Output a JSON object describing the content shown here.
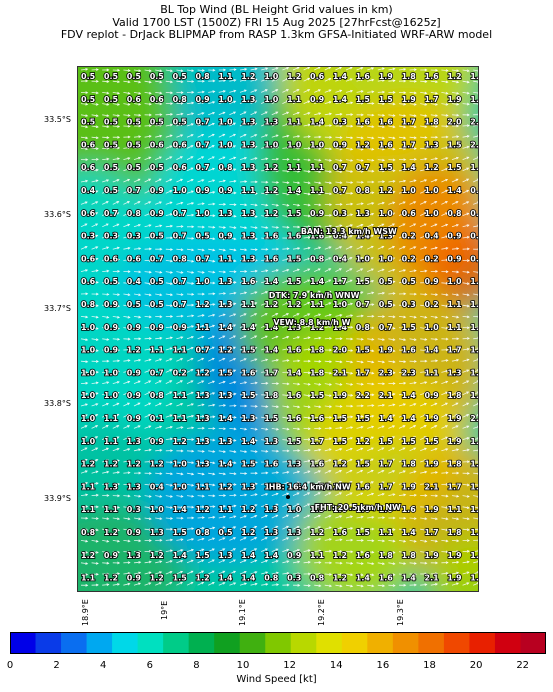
{
  "title": {
    "line1": "BL Top Wind (BL Height Grid values in km)",
    "line2": "Valid 1700 LST (1500Z) FRI 15 Aug 2025 [27hrFcst@1625z]",
    "line3": "FDV replot - DrJack BLIPMAP from RASP 1.3km GFSA-Initiated WRF-ARW model"
  },
  "lat_labels": [
    "33.5°S",
    "33.6°S",
    "33.7°S",
    "33.8°S",
    "33.9°S"
  ],
  "lon_labels": [
    "18.9°E",
    "19°E",
    "19.1°E",
    "19.2°E",
    "19.3°E"
  ],
  "grid_values": [
    [
      "0.5",
      "0.5",
      "0.5",
      "0.5",
      "0.5",
      "0.8",
      "1.1",
      "1.2",
      "1.0",
      "1.2",
      "0.6",
      "1.4",
      "1.6",
      "1.9",
      "1.8",
      "1.6",
      "1.2",
      "1.9"
    ],
    [
      "0.5",
      "0.5",
      "0.6",
      "0.6",
      "0.8",
      "0.9",
      "1.0",
      "1.3",
      "1.0",
      "1.1",
      "0.9",
      "1.4",
      "1.5",
      "1.5",
      "1.9",
      "1.7",
      "1.9",
      "1.9"
    ],
    [
      "0.5",
      "0.5",
      "0.5",
      "0.5",
      "0.5",
      "0.7",
      "1.0",
      "1.3",
      "1.3",
      "1.1",
      "1.4",
      "0.3",
      "1.6",
      "1.6",
      "1.7",
      "1.8",
      "2.0",
      "2.1"
    ],
    [
      "0.6",
      "0.5",
      "0.5",
      "0.6",
      "0.6",
      "0.7",
      "1.0",
      "1.3",
      "1.0",
      "1.0",
      "1.0",
      "0.9",
      "1.2",
      "1.6",
      "1.7",
      "1.3",
      "1.5",
      "2.0"
    ],
    [
      "0.6",
      "0.5",
      "0.5",
      "0.5",
      "0.6",
      "0.7",
      "0.8",
      "1.3",
      "1.2",
      "1.1",
      "1.1",
      "0.7",
      "0.7",
      "1.5",
      "1.4",
      "1.2",
      "1.5",
      "1.7"
    ],
    [
      "0.4",
      "0.5",
      "0.7",
      "0.9",
      "1.0",
      "0.9",
      "0.9",
      "1.1",
      "1.2",
      "1.4",
      "1.1",
      "0.7",
      "0.8",
      "1.2",
      "1.0",
      "1.0",
      "1.4",
      "0.9"
    ],
    [
      "0.6",
      "0.7",
      "0.8",
      "0.9",
      "0.7",
      "1.0",
      "1.3",
      "1.3",
      "1.2",
      "1.5",
      "0.9",
      "0.3",
      "1.3",
      "1.0",
      "0.6",
      "1.0",
      "0.8",
      "0.9"
    ],
    [
      "0.3",
      "0.3",
      "0.3",
      "0.5",
      "0.7",
      "0.5",
      "0.9",
      "1.3",
      "1.6",
      "1.6",
      "1.6",
      "0.4",
      "1.4",
      "1.3",
      "0.2",
      "0.4",
      "0.9",
      "0.8"
    ],
    [
      "0.6",
      "0.6",
      "0.6",
      "0.7",
      "0.8",
      "0.7",
      "1.1",
      "1.3",
      "1.6",
      "1.5",
      "0.8",
      "0.4",
      "1.0",
      "1.0",
      "0.2",
      "0.2",
      "0.9",
      "0.8"
    ],
    [
      "0.6",
      "0.5",
      "0.4",
      "0.5",
      "0.7",
      "1.0",
      "1.3",
      "1.6",
      "1.4",
      "1.5",
      "1.4",
      "1.7",
      "1.5",
      "0.5",
      "0.5",
      "0.9",
      "1.0",
      "1.1"
    ],
    [
      "0.8",
      "0.9",
      "0.5",
      "0.5",
      "0.7",
      "1.2",
      "1.3",
      "1.1",
      "1.2",
      "1.2",
      "1.1",
      "1.0",
      "0.7",
      "0.5",
      "0.3",
      "0.2",
      "1.1",
      "1.3"
    ],
    [
      "1.0",
      "0.9",
      "0.9",
      "0.9",
      "0.9",
      "1.1",
      "1.4",
      "1.4",
      "1.4",
      "1.3",
      "1.2",
      "1.4",
      "0.8",
      "0.7",
      "1.5",
      "1.0",
      "1.1",
      "1.3"
    ],
    [
      "1.0",
      "0.9",
      "1.2",
      "1.1",
      "1.1",
      "0.7",
      "1.2",
      "1.5",
      "1.4",
      "1.6",
      "1.8",
      "2.0",
      "1.5",
      "1.9",
      "1.6",
      "1.4",
      "1.7",
      "1.1"
    ],
    [
      "1.0",
      "1.0",
      "0.9",
      "0.7",
      "0.2",
      "1.2",
      "1.5",
      "1.6",
      "1.7",
      "1.4",
      "1.8",
      "2.1",
      "1.7",
      "2.3",
      "2.3",
      "1.1",
      "1.3",
      "1.1"
    ],
    [
      "1.0",
      "1.0",
      "0.9",
      "0.8",
      "1.1",
      "1.3",
      "1.3",
      "1.5",
      "1.8",
      "1.6",
      "1.5",
      "1.9",
      "2.2",
      "2.1",
      "1.4",
      "0.9",
      "1.8",
      "1.9"
    ],
    [
      "1.0",
      "1.1",
      "0.9",
      "0.1",
      "1.1",
      "1.3",
      "1.4",
      "1.3",
      "1.5",
      "1.6",
      "1.6",
      "1.5",
      "1.5",
      "1.4",
      "1.4",
      "1.9",
      "1.9",
      "2.2"
    ],
    [
      "1.0",
      "1.1",
      "1.3",
      "0.9",
      "1.2",
      "1.3",
      "1.3",
      "1.4",
      "1.3",
      "1.5",
      "1.7",
      "1.5",
      "1.2",
      "1.5",
      "1.5",
      "1.5",
      "1.9",
      "1.7"
    ],
    [
      "1.2",
      "1.2",
      "1.2",
      "1.2",
      "1.0",
      "1.3",
      "1.4",
      "1.5",
      "1.6",
      "1.3",
      "1.6",
      "1.2",
      "1.5",
      "1.7",
      "1.8",
      "1.9",
      "1.8",
      "1.2"
    ],
    [
      "1.1",
      "1.3",
      "1.3",
      "0.4",
      "1.0",
      "1.1",
      "1.2",
      "1.3",
      "1.6",
      "1.6",
      "1.7",
      "1.8",
      "1.6",
      "1.7",
      "1.9",
      "2.1",
      "1.7",
      "1.1"
    ],
    [
      "1.1",
      "1.1",
      "0.3",
      "1.0",
      "1.4",
      "1.2",
      "1.1",
      "1.2",
      "1.3",
      "1.0",
      "1.5",
      "1.6",
      "1.6",
      "1.0",
      "1.6",
      "1.9",
      "1.1",
      "1.6"
    ],
    [
      "0.8",
      "1.2",
      "0.9",
      "1.3",
      "1.5",
      "0.8",
      "0.5",
      "1.2",
      "1.3",
      "1.3",
      "1.2",
      "1.6",
      "1.5",
      "1.1",
      "1.4",
      "1.7",
      "1.8",
      "1.8"
    ],
    [
      "1.2",
      "0.9",
      "1.3",
      "1.2",
      "1.4",
      "1.5",
      "1.3",
      "1.4",
      "1.4",
      "0.9",
      "1.1",
      "1.2",
      "1.6",
      "1.8",
      "1.8",
      "1.9",
      "1.9",
      "1.5"
    ],
    [
      "1.1",
      "1.2",
      "0.9",
      "1.2",
      "1.5",
      "1.2",
      "1.4",
      "1.4",
      "0.8",
      "0.3",
      "0.8",
      "1.2",
      "1.4",
      "1.6",
      "1.4",
      "2.1",
      "1.9",
      "1.5"
    ]
  ],
  "site_labels": [
    {
      "text": "BAN: 13.3 km/h WSW",
      "col": 9.6,
      "row": 6.8
    },
    {
      "text": "DTK: 7.9 km/h WNW",
      "col": 8.2,
      "row": 9.6
    },
    {
      "text": "VEW: 8.8 km/h W",
      "col": 8.4,
      "row": 10.8
    },
    {
      "text": "HB: 16.4 km/h NW",
      "col": 8.2,
      "row": 18.0
    },
    {
      "text": "FHT: 20.5 km/h NW",
      "col": 10.2,
      "row": 18.9
    }
  ],
  "colorbar": {
    "label": "Wind Speed [kt]",
    "min": 0,
    "max": 23,
    "ticks": [
      "0",
      "2",
      "4",
      "6",
      "8",
      "10",
      "12",
      "14",
      "16",
      "18",
      "20",
      "22"
    ],
    "colors": [
      "#0000e8",
      "#0a3be8",
      "#0a6ef0",
      "#00a8f0",
      "#00d8e8",
      "#00e0c0",
      "#00cc88",
      "#00b050",
      "#10a020",
      "#40b010",
      "#80c800",
      "#b8d800",
      "#e0e000",
      "#f0d000",
      "#f0b000",
      "#f09000",
      "#f07000",
      "#f04800",
      "#e82000",
      "#d00010",
      "#b80020"
    ]
  }
}
